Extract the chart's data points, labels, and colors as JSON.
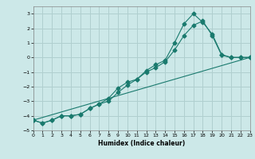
{
  "xlabel": "Humidex (Indice chaleur)",
  "bg_color": "#cce8e8",
  "grid_color": "#b0cfcf",
  "line_color": "#1a7a6e",
  "xlim": [
    0,
    23
  ],
  "ylim": [
    -5,
    3.5
  ],
  "yticks": [
    -5,
    -4,
    -3,
    -2,
    -1,
    0,
    1,
    2,
    3
  ],
  "xticks": [
    0,
    1,
    2,
    3,
    4,
    5,
    6,
    7,
    8,
    9,
    10,
    11,
    12,
    13,
    14,
    15,
    16,
    17,
    18,
    19,
    20,
    21,
    22,
    23
  ],
  "line1_x": [
    0,
    1,
    2,
    3,
    4,
    5,
    6,
    7,
    8,
    9,
    10,
    11,
    12,
    13,
    14,
    15,
    16,
    17,
    18,
    19,
    20,
    21,
    22,
    23
  ],
  "line1_y": [
    -4.3,
    -4.5,
    -4.3,
    -4.0,
    -4.0,
    -3.9,
    -3.5,
    -3.2,
    -2.8,
    -2.1,
    -1.7,
    -1.5,
    -0.9,
    -0.5,
    -0.2,
    1.0,
    2.3,
    3.0,
    2.4,
    1.6,
    0.2,
    0.0,
    0.0,
    0.0
  ],
  "line2_x": [
    0,
    1,
    2,
    3,
    4,
    5,
    6,
    7,
    8,
    9,
    10,
    11,
    12,
    13,
    14,
    15,
    16,
    17,
    18,
    19,
    20,
    21,
    22,
    23
  ],
  "line2_y": [
    -4.3,
    -4.5,
    -4.3,
    -4.0,
    -4.0,
    -3.9,
    -3.5,
    -3.2,
    -3.0,
    -2.4,
    -1.9,
    -1.5,
    -1.0,
    -0.7,
    -0.3,
    0.5,
    1.5,
    2.2,
    2.5,
    1.5,
    0.15,
    0.0,
    0.0,
    0.0
  ],
  "line3_x": [
    0,
    23
  ],
  "line3_y": [
    -4.3,
    0.0
  ]
}
